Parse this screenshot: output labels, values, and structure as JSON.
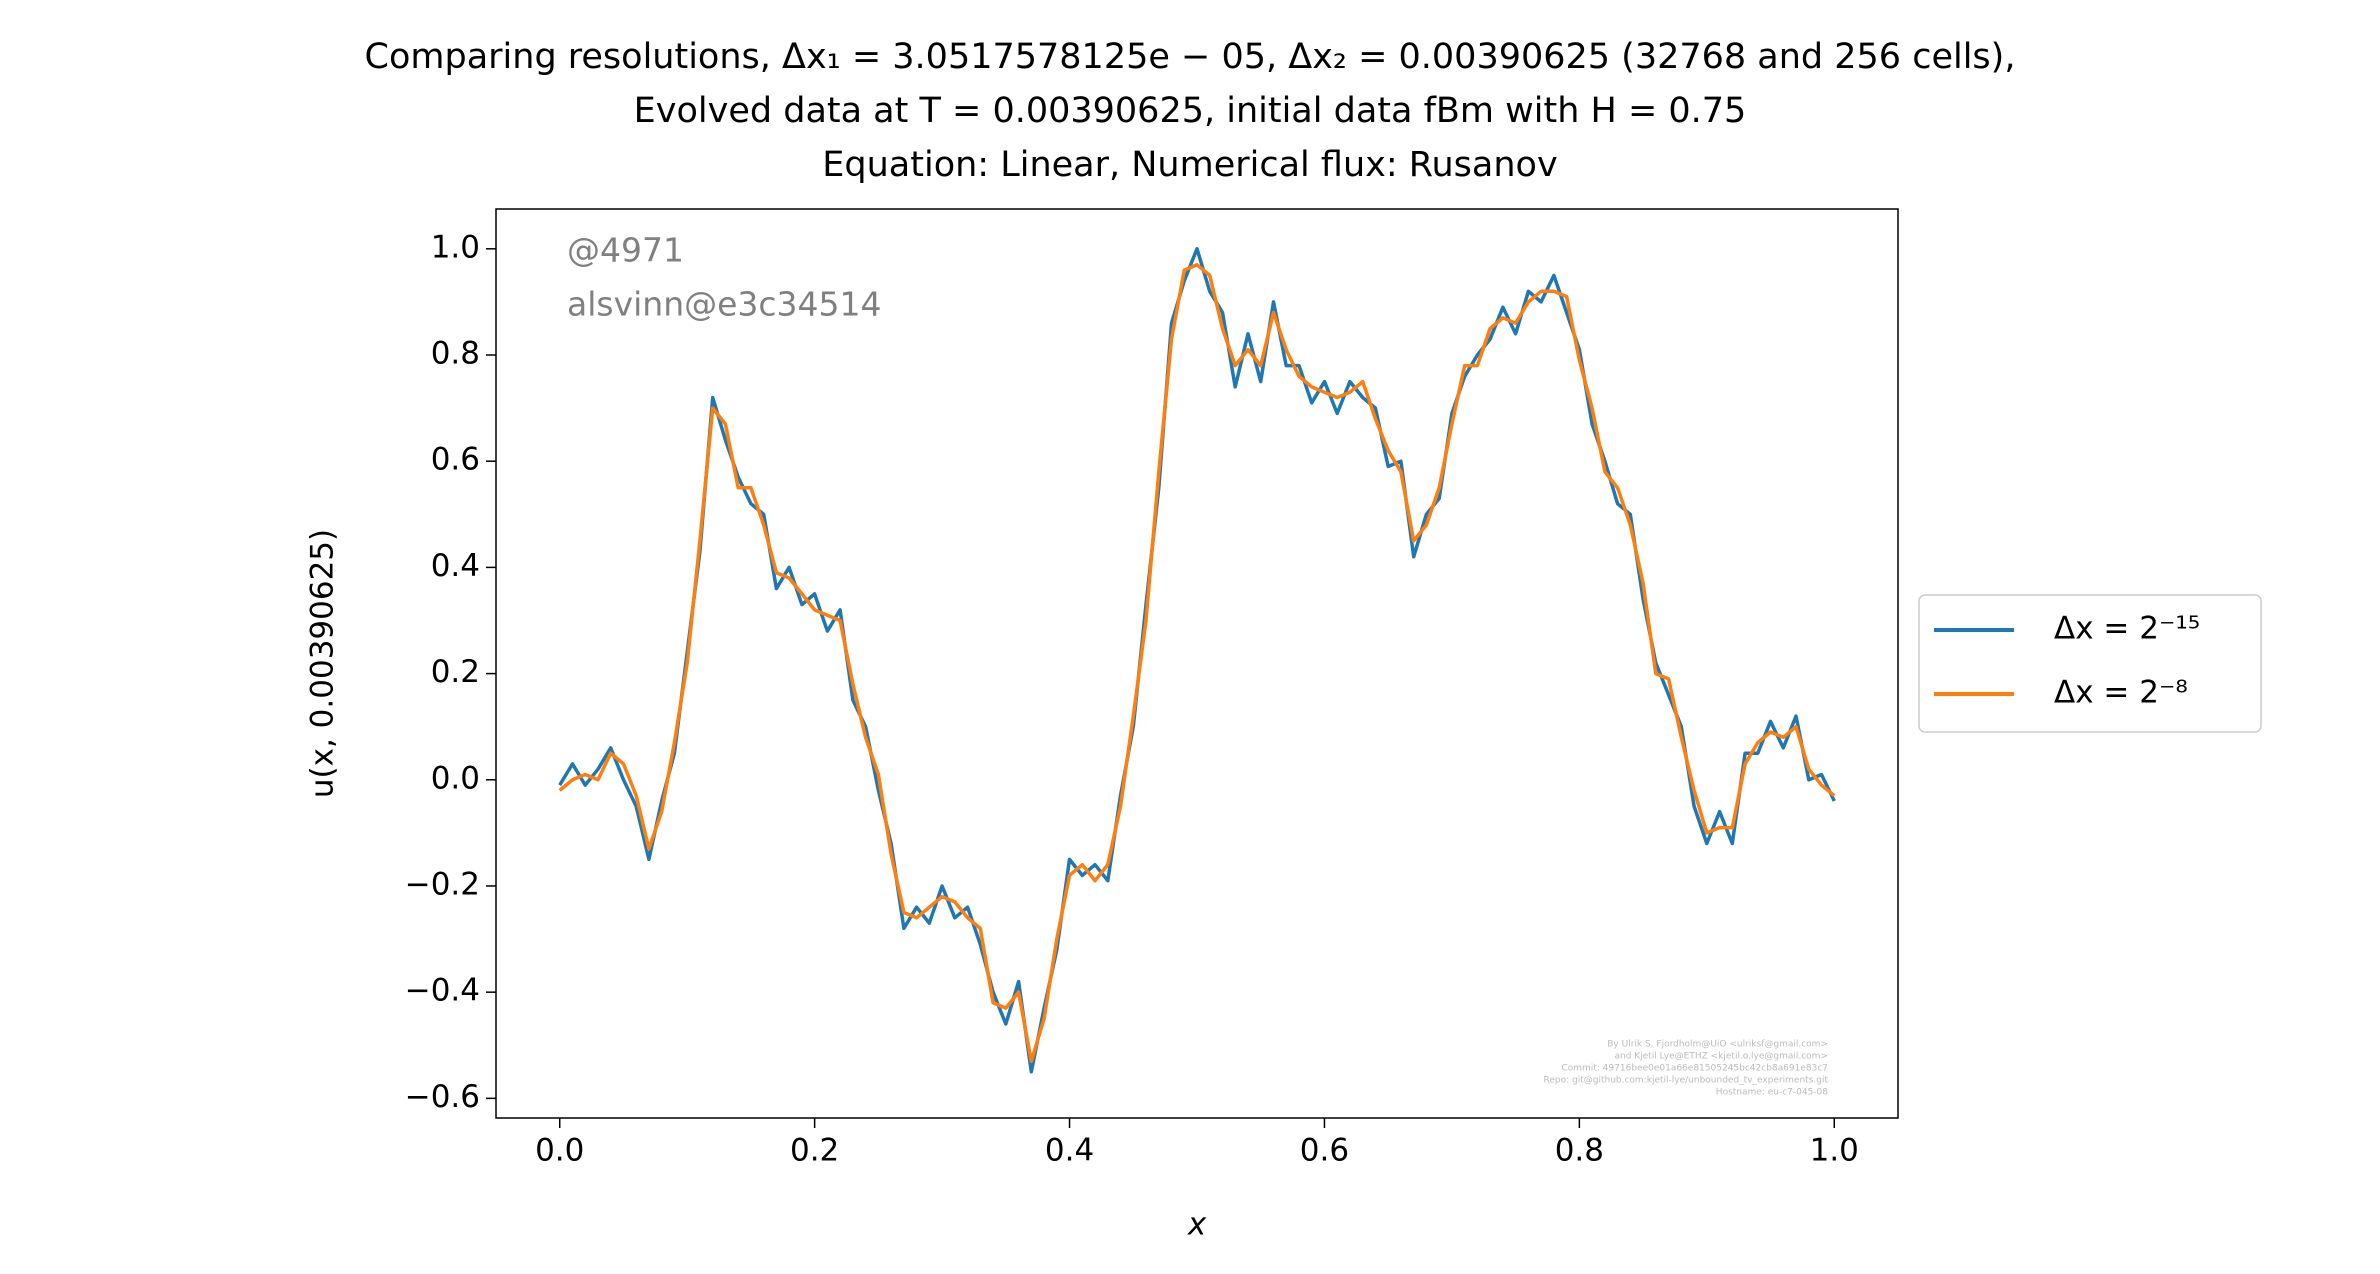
{
  "chart_data": {
    "type": "line",
    "title": [
      "Comparing resolutions, Δx₁ = 3.0517578125e − 05, Δx₂ = 0.00390625 (32768 and 256 cells),",
      "Evolved data at T = 0.00390625, initial data fBm with H = 0.75",
      "Equation: Linear, Numerical flux: Rusanov"
    ],
    "x_label": "x",
    "y_label": "u(x, 0.00390625)",
    "annotations": [
      "@4971",
      "alsvinn@e3c34514"
    ],
    "footer": [
      "By Ulrik S. Fjordholm@UiO <ulriksf@gmail.com>",
      "and Kjetil Lye@ETHZ <kjetil.o.lye@gmail.com>",
      "Commit: 49716bee0e01a66e81505245bc42cb8a691e83c7",
      "Repo: git@github.com:kjetil-lye/unbounded_tv_experiments.git",
      "Hostname: eu-c7-045-08"
    ],
    "legend": "right",
    "xlim": [
      -0.05,
      1.05
    ],
    "ylim": [
      -0.637,
      1.075
    ],
    "xticks": [
      {
        "value": 0,
        "label": "0.0"
      },
      0.2,
      0.4,
      0.6,
      0.8,
      {
        "value": 1,
        "label": "1.0"
      }
    ],
    "yticks": [
      {
        "value": -0.6,
        "label": "−0.6"
      },
      {
        "value": -0.4,
        "label": "−0.4"
      },
      {
        "value": -0.2,
        "label": "−0.2"
      },
      {
        "value": 0,
        "label": "0.0"
      },
      0.2,
      0.4,
      0.6,
      0.8,
      {
        "value": 1,
        "label": "1.0"
      }
    ],
    "x": [
      0,
      0.01,
      0.02,
      0.03,
      0.04,
      0.05,
      0.06,
      0.07,
      0.08,
      0.09,
      0.1,
      0.11,
      0.12,
      0.13,
      0.14,
      0.15,
      0.16,
      0.17,
      0.18,
      0.19,
      0.2,
      0.21,
      0.22,
      0.23,
      0.24,
      0.25,
      0.26,
      0.27,
      0.28,
      0.29,
      0.3,
      0.31,
      0.32,
      0.33,
      0.34,
      0.35,
      0.36,
      0.37,
      0.38,
      0.39,
      0.4,
      0.41,
      0.42,
      0.43,
      0.44,
      0.45,
      0.46,
      0.47,
      0.48,
      0.49,
      0.5,
      0.51,
      0.52,
      0.53,
      0.54,
      0.55,
      0.56,
      0.57,
      0.58,
      0.59,
      0.6,
      0.61,
      0.62,
      0.63,
      0.64,
      0.65,
      0.66,
      0.67,
      0.68,
      0.69,
      0.7,
      0.71,
      0.72,
      0.73,
      0.74,
      0.75,
      0.76,
      0.77,
      0.78,
      0.79,
      0.8,
      0.81,
      0.82,
      0.83,
      0.84,
      0.85,
      0.86,
      0.87,
      0.88,
      0.89,
      0.9,
      0.91,
      0.92,
      0.93,
      0.94,
      0.95,
      0.96,
      0.97,
      0.98,
      0.99,
      1
    ],
    "series": [
      {
        "name": "Δx = 2⁻¹⁵",
        "color": "#1f77b4",
        "values": [
          -0.01,
          0.03,
          -0.01,
          0.02,
          0.06,
          0.0,
          -0.05,
          -0.15,
          -0.04,
          0.05,
          0.24,
          0.43,
          0.72,
          0.64,
          0.57,
          0.52,
          0.5,
          0.36,
          0.4,
          0.33,
          0.35,
          0.28,
          0.32,
          0.15,
          0.1,
          -0.02,
          -0.12,
          -0.28,
          -0.24,
          -0.27,
          -0.2,
          -0.26,
          -0.24,
          -0.31,
          -0.4,
          -0.46,
          -0.38,
          -0.55,
          -0.43,
          -0.32,
          -0.15,
          -0.18,
          -0.16,
          -0.19,
          -0.03,
          0.1,
          0.33,
          0.55,
          0.86,
          0.94,
          1.0,
          0.92,
          0.88,
          0.74,
          0.84,
          0.75,
          0.9,
          0.78,
          0.78,
          0.71,
          0.75,
          0.69,
          0.75,
          0.72,
          0.7,
          0.59,
          0.6,
          0.42,
          0.5,
          0.53,
          0.69,
          0.76,
          0.8,
          0.83,
          0.89,
          0.84,
          0.92,
          0.9,
          0.95,
          0.88,
          0.81,
          0.67,
          0.6,
          0.52,
          0.5,
          0.34,
          0.22,
          0.16,
          0.1,
          -0.05,
          -0.12,
          -0.06,
          -0.12,
          0.05,
          0.05,
          0.11,
          0.06,
          0.12,
          0.0,
          0.01,
          -0.04
        ]
      },
      {
        "name": "Δx = 2⁻⁸",
        "color": "#ff7f0e",
        "values": [
          -0.02,
          0.0,
          0.01,
          0.0,
          0.05,
          0.03,
          -0.03,
          -0.13,
          -0.06,
          0.07,
          0.22,
          0.45,
          0.7,
          0.67,
          0.55,
          0.55,
          0.48,
          0.39,
          0.38,
          0.35,
          0.32,
          0.31,
          0.3,
          0.18,
          0.08,
          0.01,
          -0.14,
          -0.25,
          -0.26,
          -0.24,
          -0.22,
          -0.23,
          -0.26,
          -0.28,
          -0.42,
          -0.43,
          -0.4,
          -0.53,
          -0.45,
          -0.3,
          -0.18,
          -0.16,
          -0.19,
          -0.16,
          -0.05,
          0.12,
          0.3,
          0.58,
          0.83,
          0.96,
          0.97,
          0.95,
          0.85,
          0.78,
          0.81,
          0.78,
          0.88,
          0.81,
          0.76,
          0.74,
          0.73,
          0.72,
          0.73,
          0.75,
          0.68,
          0.62,
          0.58,
          0.45,
          0.48,
          0.55,
          0.67,
          0.78,
          0.78,
          0.85,
          0.87,
          0.86,
          0.9,
          0.92,
          0.92,
          0.91,
          0.79,
          0.7,
          0.58,
          0.55,
          0.48,
          0.37,
          0.2,
          0.19,
          0.08,
          -0.02,
          -0.1,
          -0.09,
          -0.09,
          0.03,
          0.07,
          0.09,
          0.08,
          0.1,
          0.02,
          -0.01,
          -0.03
        ]
      }
    ]
  }
}
